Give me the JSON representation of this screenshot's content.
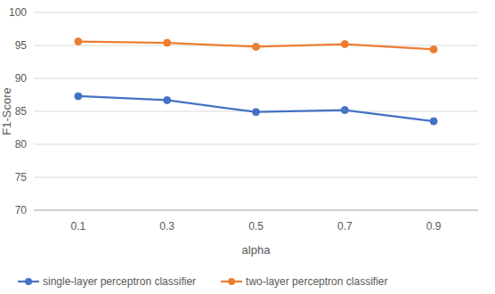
{
  "chart_data": {
    "type": "line",
    "x_label": "alpha",
    "y_label": "F1-Score",
    "categories": [
      "0.1",
      "0.3",
      "0.5",
      "0.7",
      "0.9"
    ],
    "series": [
      {
        "name": "single-layer perceptron classifier",
        "color": "#4472c4",
        "marker": "circle",
        "values": [
          87.3,
          86.7,
          84.9,
          85.2,
          83.5
        ]
      },
      {
        "name": "two-layer perceptron classifier",
        "color": "#ed7d31",
        "marker": "circle",
        "values": [
          95.6,
          95.4,
          94.8,
          95.2,
          94.4
        ]
      }
    ],
    "ylim": [
      70,
      100
    ],
    "yticks": [
      70,
      75,
      80,
      85,
      90,
      95,
      100
    ],
    "grid": true,
    "legend": "bottom"
  }
}
